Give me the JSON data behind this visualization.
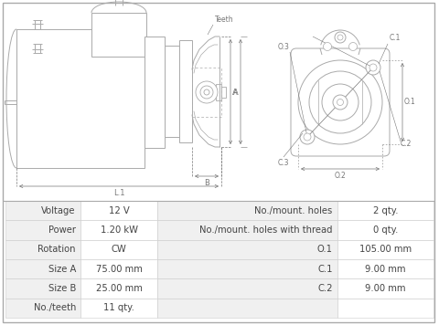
{
  "bg_color": "#ffffff",
  "table_border_color": "#cccccc",
  "table_row_bg1": "#f0f0f0",
  "table_data": [
    [
      "Voltage",
      "12 V",
      "No./mount. holes",
      "2 qty."
    ],
    [
      "Power",
      "1.20 kW",
      "No./mount. holes with thread",
      "0 qty."
    ],
    [
      "Rotation",
      "CW",
      "O.1",
      "105.00 mm"
    ],
    [
      "Size A",
      "75.00 mm",
      "C.1",
      "9.00 mm"
    ],
    [
      "Size B",
      "25.00 mm",
      "C.2",
      "9.00 mm"
    ],
    [
      "No./teeth",
      "11 qty.",
      "",
      ""
    ]
  ],
  "font_size_table": 7.2,
  "line_color": "#aaaaaa",
  "dim_color": "#888888",
  "fig_border": "#aaaaaa"
}
